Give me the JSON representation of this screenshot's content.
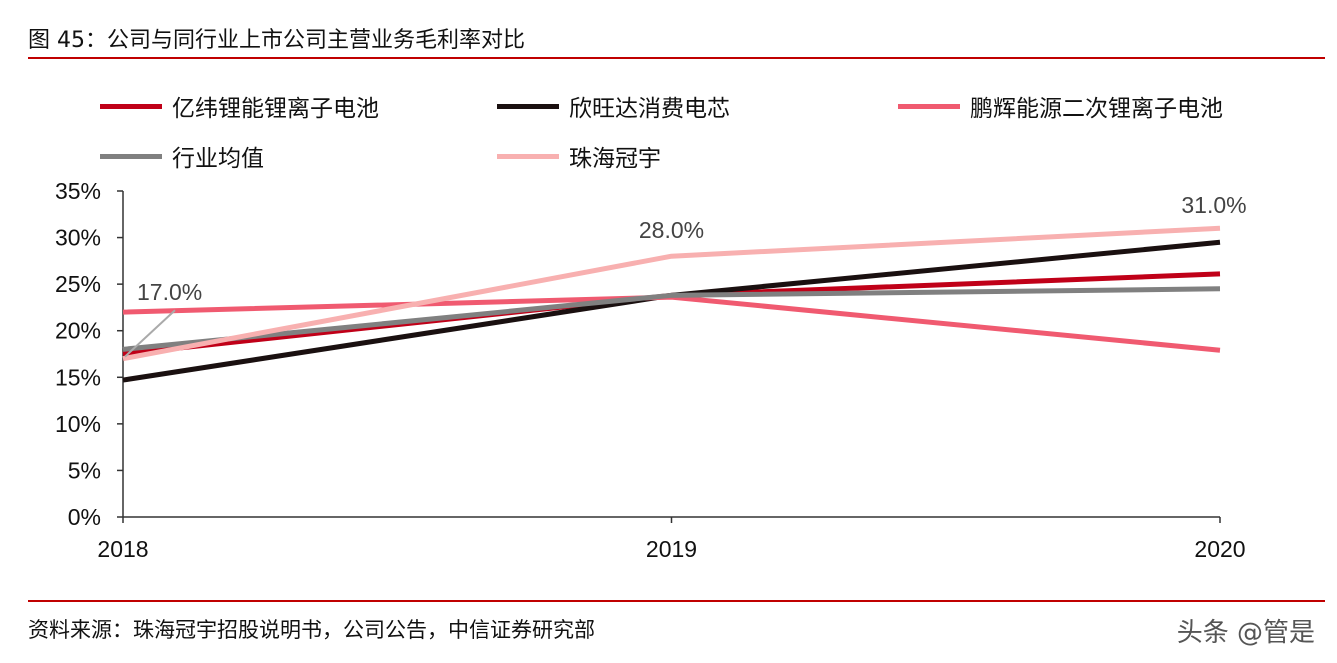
{
  "title": "图 45：公司与同行业上市公司主营业务毛利率对比",
  "source": "资料来源：珠海冠宇招股说明书，公司公告，中信证券研究部",
  "watermark": "头条 @管是",
  "chart_data": {
    "type": "line",
    "categories": [
      "2018",
      "2019",
      "2020"
    ],
    "ylim": [
      0,
      35
    ],
    "yticks": [
      "0%",
      "5%",
      "10%",
      "15%",
      "20%",
      "25%",
      "30%",
      "35%"
    ],
    "legend_position": "top",
    "grid": false,
    "series": [
      {
        "name": "亿纬锂能锂离子电池",
        "color": "#c00018",
        "values": [
          17.5,
          23.8,
          26.1
        ]
      },
      {
        "name": "欣旺达消费电芯",
        "color": "#1a1010",
        "values": [
          14.7,
          23.8,
          29.5
        ]
      },
      {
        "name": "鹏辉能源二次锂离子电池",
        "color": "#f05a70",
        "values": [
          22.0,
          23.6,
          17.9
        ]
      },
      {
        "name": "行业均值",
        "color": "#808080",
        "values": [
          18.0,
          23.8,
          24.5
        ]
      },
      {
        "name": "珠海冠宇",
        "color": "#f8b0b0",
        "values": [
          17.0,
          28.0,
          31.0
        ]
      }
    ],
    "data_labels": [
      "17.0%",
      "28.0%",
      "31.0%"
    ]
  }
}
